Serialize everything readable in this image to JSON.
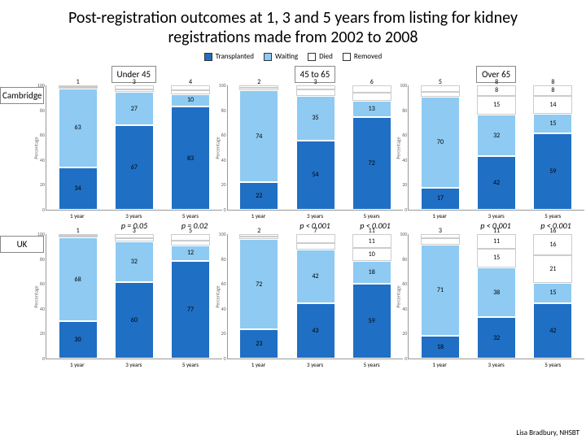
{
  "title": "Post-registration outcomes at 1, 3 and 5 years from listing for kidney registrations made from 2002 to 2008",
  "attribution": "Lisa Bradbury, NHSBT",
  "legend": [
    {
      "label": "Transplanted",
      "color": "#1f6fc4"
    },
    {
      "label": "Waiting",
      "color": "#8ecaf2"
    },
    {
      "label": "Died",
      "color": "#ffffff"
    },
    {
      "label": "Removed",
      "color": "#ffffff"
    }
  ],
  "colors": {
    "transplanted": "#1f6fc4",
    "waiting": "#8ecaf2",
    "died": "#ffffff",
    "removed": "#ffffff",
    "border": "#999999",
    "axis_text": "#666666"
  },
  "x_labels": [
    "1 year",
    "3 years",
    "5 years"
  ],
  "age_groups": [
    "Under 45",
    "45 to 65",
    "Over 65"
  ],
  "rows": [
    "Cambridge",
    "UK"
  ],
  "ylim": [
    0,
    100
  ],
  "ytick_step": 20,
  "ylabel": "Percentage",
  "charts": {
    "Cambridge": {
      "Under 45": {
        "bars": [
          {
            "removed": 1,
            "died": 1,
            "waiting": 63,
            "transplanted": 34
          },
          {
            "removed": 3,
            "died": 2,
            "waiting": 27,
            "transplanted": 67
          },
          {
            "removed": 4,
            "died": 3,
            "waiting": 10,
            "transplanted": 83
          }
        ],
        "pvals": [
          "",
          "p = 0.05",
          "p = 0.02"
        ]
      },
      "45 to 65": {
        "bars": [
          {
            "removed": 2,
            "died": 2,
            "waiting": 74,
            "transplanted": 22
          },
          {
            "removed": 3,
            "died": 5,
            "waiting": 35,
            "transplanted": 54
          },
          {
            "removed": 6,
            "died": 6,
            "waiting": 13,
            "transplanted": 72
          }
        ],
        "pvals": [
          "",
          "p < 0.001",
          "p < 0.001"
        ]
      },
      "Over 65": {
        "bars": [
          {
            "removed": 5,
            "died": 4,
            "waiting": 70,
            "transplanted": 17
          },
          {
            "removed": 8,
            "died": 15,
            "waiting": 32,
            "transplanted": 42
          },
          {
            "removed": 8,
            "died": 14,
            "waiting": 15,
            "transplanted": 59
          }
        ],
        "pvals": [
          "",
          "p < 0.001",
          "p < 0.001"
        ]
      }
    },
    "UK": {
      "Under 45": {
        "bars": [
          {
            "removed": 1,
            "died": 1,
            "waiting": 68,
            "transplanted": 30
          },
          {
            "removed": 3,
            "died": 3,
            "waiting": 32,
            "transplanted": 60
          },
          {
            "removed": 5,
            "died": 4,
            "waiting": 12,
            "transplanted": 77
          }
        ]
      },
      "45 to 65": {
        "bars": [
          {
            "removed": 2,
            "died": 2,
            "waiting": 72,
            "transplanted": 23
          },
          {
            "removed": 7,
            "died": 5,
            "waiting": 42,
            "transplanted": 43
          },
          {
            "removed": 11,
            "died": 10,
            "waiting": 18,
            "transplanted": 59
          }
        ]
      },
      "Over 65": {
        "bars": [
          {
            "removed": 3,
            "died": 5,
            "waiting": 71,
            "transplanted": 18
          },
          {
            "removed": 11,
            "died": 15,
            "waiting": 38,
            "transplanted": 32
          },
          {
            "removed": 16,
            "died": 21,
            "waiting": 15,
            "transplanted": 42
          }
        ]
      }
    }
  }
}
